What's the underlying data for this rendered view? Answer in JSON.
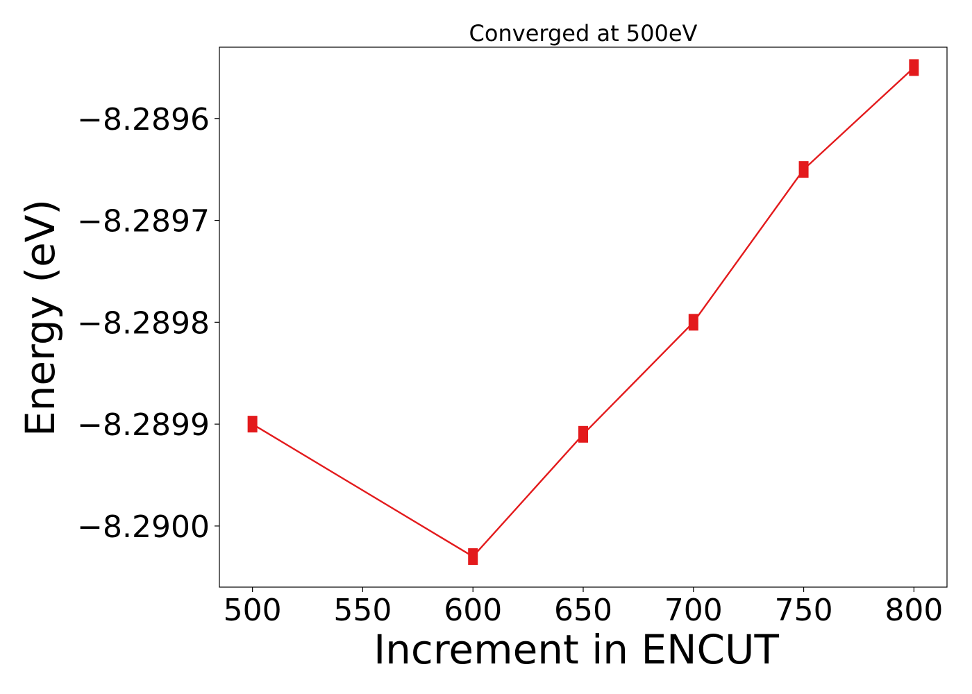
{
  "chart_data": {
    "type": "line",
    "title": "Converged at 500eV",
    "xlabel": "Increment in ENCUT",
    "ylabel": "Energy (eV)",
    "x": [
      500,
      600,
      650,
      700,
      750,
      800
    ],
    "series": [
      {
        "values": [
          -8.2899,
          -8.29003,
          -8.28991,
          -8.2898,
          -8.28965,
          -8.28955
        ],
        "color": "#e31a1c",
        "marker": "square"
      }
    ],
    "xticks": [
      500,
      550,
      600,
      650,
      700,
      750,
      800
    ],
    "xtick_labels": [
      "500",
      "550",
      "600",
      "650",
      "700",
      "750",
      "800"
    ],
    "yticks": [
      -8.2896,
      -8.2897,
      -8.2898,
      -8.2899,
      -8.29
    ],
    "ytick_labels": [
      "−8.2896",
      "−8.2897",
      "−8.2898",
      "−8.2899",
      "−8.2900"
    ],
    "xlim": [
      485,
      815
    ],
    "ylim": [
      -8.29006,
      -8.28953
    ],
    "grid": false
  }
}
